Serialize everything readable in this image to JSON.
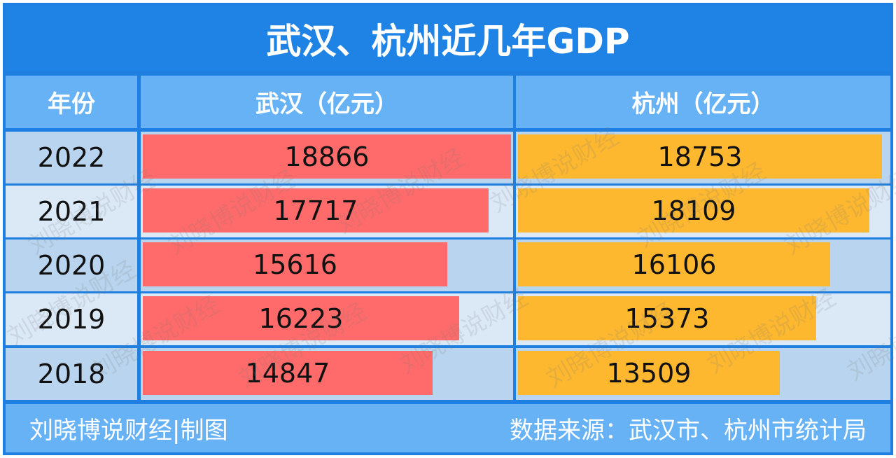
{
  "title": "武汉、杭州近几年GDP",
  "header": {
    "year": "年份",
    "wuhan": "武汉（亿元）",
    "hangzhou": "杭州（亿元）"
  },
  "footer": {
    "left": "刘晓博说财经|制图",
    "right": "数据来源：武汉市、杭州市统计局"
  },
  "watermark": "刘晓博说财经",
  "colors": {
    "title_bg": "#1e83e4",
    "header_bg": "#67b2f5",
    "wuhan_bar": "#ff6b6b",
    "hangzhou_bar": "#fdb830",
    "row_dark": "#b9d4ee",
    "row_light": "#dbe9f7"
  },
  "chart_data": {
    "type": "bar",
    "orientation": "horizontal",
    "categories": [
      "2022",
      "2021",
      "2020",
      "2019",
      "2018"
    ],
    "series": [
      {
        "name": "武汉（亿元）",
        "values": [
          18866,
          17717,
          15616,
          16223,
          14847
        ]
      },
      {
        "name": "杭州（亿元）",
        "values": [
          18753,
          18109,
          16106,
          15373,
          13509
        ]
      }
    ],
    "xlim": [
      0,
      18866
    ]
  }
}
